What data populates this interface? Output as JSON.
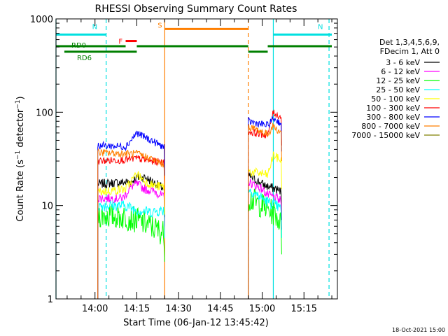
{
  "chart_data": {
    "type": "line",
    "title": "RHESSI Observing Summary Count Rates",
    "xlabel": "Start Time (06-Jan-12 13:45:42)",
    "ylabel": "Count Rate (s⁻¹ detector⁻¹)",
    "y_scale": "log",
    "ylim": [
      1,
      1000
    ],
    "xlim": [
      "13:46",
      "15:27"
    ],
    "x_ticks": [
      "14:00",
      "14:15",
      "14:30",
      "14:45",
      "15:00",
      "15:15"
    ],
    "y_ticks": [
      "1",
      "10",
      "100",
      "1000"
    ],
    "grid": false,
    "legend_position": "right",
    "legend_header": [
      "Det 1,3,4,5,6,9,",
      "FDecim 1, Att 0"
    ],
    "footer_date": "18-Oct-2021 15:00",
    "colors": {
      "axis": "#000000",
      "eclipse": "#00e0e0",
      "saa": "#ff7f00",
      "flare": "#ff0000",
      "decimation": "#007f00"
    },
    "markers": [
      {
        "label": "N",
        "color": "#00e0e0",
        "from": "13:46",
        "to": "14:04",
        "level": 680
      },
      {
        "label": "N",
        "color": "#00e0e0",
        "from": "15:04",
        "to": "15:25",
        "level": 680
      },
      {
        "label": "F",
        "color": "#ff0000",
        "from": "14:11",
        "to": "14:15",
        "level": 580
      },
      {
        "label": "S",
        "color": "#ff7f00",
        "from": "14:25",
        "to": "14:55",
        "level": 780
      },
      {
        "label": "RD0",
        "color": "#007f00",
        "from": "13:46",
        "to": "14:11",
        "level": 510
      },
      {
        "label": "RD6",
        "color": "#007f00",
        "from": "13:49",
        "to": "14:15",
        "level": 445
      },
      {
        "label": "",
        "color": "#007f00",
        "from": "14:15",
        "to": "14:55",
        "level": 510
      },
      {
        "label": "",
        "color": "#007f00",
        "from": "14:55",
        "to": "15:02",
        "level": 445
      },
      {
        "label": "",
        "color": "#007f00",
        "from": "15:02",
        "to": "15:25",
        "level": 510
      }
    ],
    "vlines": [
      {
        "time": "13:46",
        "color": "#00e0e0",
        "style": "solid"
      },
      {
        "time": "14:04",
        "color": "#00e0e0",
        "style": "dashed"
      },
      {
        "time": "14:25",
        "color": "#ff7f00",
        "style": "solid"
      },
      {
        "time": "14:55",
        "color": "#ff7f00",
        "style": "dashed"
      },
      {
        "time": "15:04",
        "color": "#00e0e0",
        "style": "solid"
      },
      {
        "time": "15:24",
        "color": "#00e0e0",
        "style": "dashed"
      }
    ],
    "series": [
      {
        "name": "3 - 6 keV",
        "color": "#000000",
        "jitter": 0.05,
        "segments": [
          {
            "x": [
              "13:61",
              "14:13",
              "14:15",
              "14:18",
              "14:22",
              "14:25"
            ],
            "y": [
              17,
              18,
              20,
              20,
              17,
              15
            ]
          },
          {
            "x": [
              "14:55",
              "15:00",
              "15:02",
              "15:05",
              "15:07"
            ],
            "y": [
              21,
              17,
              16,
              15,
              14
            ]
          }
        ]
      },
      {
        "name": "6 - 12 keV",
        "color": "#ff00ff",
        "jitter": 0.05,
        "segments": [
          {
            "x": [
              "13:61",
              "14:10",
              "14:13",
              "14:15",
              "14:18",
              "14:22",
              "14:25"
            ],
            "y": [
              12,
              12,
              16,
              17,
              15,
              14,
              12
            ]
          },
          {
            "x": [
              "14:55",
              "15:00",
              "15:02",
              "15:05",
              "15:07"
            ],
            "y": [
              18,
              15,
              13,
              12,
              11
            ]
          }
        ]
      },
      {
        "name": "12 - 25 keV",
        "color": "#00ff00",
        "jitter": 0.14,
        "segments": [
          {
            "x": [
              "13:61",
              "14:11",
              "14:15",
              "14:20",
              "14:25"
            ],
            "y": [
              8,
              7.5,
              7,
              6,
              5
            ]
          },
          {
            "x": [
              "14:55",
              "15:00",
              "15:02",
              "15:05",
              "15:07"
            ],
            "y": [
              12,
              10,
              9,
              8,
              6
            ]
          }
        ]
      },
      {
        "name": "25 - 50 keV",
        "color": "#00ffff",
        "jitter": 0.06,
        "segments": [
          {
            "x": [
              "13:61",
              "14:11",
              "14:15",
              "14:20",
              "14:25"
            ],
            "y": [
              10,
              10,
              9,
              8.5,
              9
            ]
          },
          {
            "x": [
              "14:55",
              "15:00",
              "15:02",
              "15:05",
              "15:07"
            ],
            "y": [
              15,
              12,
              11,
              10,
              9
            ]
          }
        ]
      },
      {
        "name": "50 - 100 keV",
        "color": "#ffff00",
        "jitter": 0.05,
        "segments": [
          {
            "x": [
              "13:61",
              "14:11",
              "14:15",
              "14:18",
              "14:22",
              "14:25"
            ],
            "y": [
              14,
              15,
              22,
              18,
              16,
              16
            ]
          },
          {
            "x": [
              "14:55",
              "15:00",
              "15:02",
              "15:04",
              "15:05",
              "15:07"
            ],
            "y": [
              23,
              22,
              21,
              35,
              33,
              30
            ]
          }
        ]
      },
      {
        "name": "100 - 300 keV",
        "color": "#ff0000",
        "jitter": 0.04,
        "segments": [
          {
            "x": [
              "13:61",
              "14:11",
              "14:15",
              "14:20",
              "14:25"
            ],
            "y": [
              30,
              31,
              32,
              30,
              29
            ]
          },
          {
            "x": [
              "14:55",
              "15:00",
              "15:02",
              "15:04",
              "15:05",
              "15:07"
            ],
            "y": [
              62,
              58,
              57,
              100,
              95,
              88
            ]
          }
        ]
      },
      {
        "name": "300 - 800 keV",
        "color": "#0000ff",
        "jitter": 0.04,
        "segments": [
          {
            "x": [
              "13:61",
              "14:11",
              "14:15",
              "14:20",
              "14:25"
            ],
            "y": [
              44,
              43,
              60,
              50,
              42
            ]
          },
          {
            "x": [
              "14:55",
              "15:00",
              "15:02",
              "15:04",
              "15:05",
              "15:07"
            ],
            "y": [
              80,
              74,
              72,
              86,
              82,
              76
            ]
          }
        ]
      },
      {
        "name": "800 - 7000 keV",
        "color": "#ff7f00",
        "jitter": 0.04,
        "segments": [
          {
            "x": [
              "13:61",
              "14:11",
              "14:15",
              "14:20",
              "14:25"
            ],
            "y": [
              37,
              36,
              36,
              32,
              27
            ]
          },
          {
            "x": [
              "14:55",
              "15:00",
              "15:02",
              "15:04",
              "15:05",
              "15:07"
            ],
            "y": [
              70,
              62,
              58,
              72,
              66,
              60
            ]
          }
        ]
      },
      {
        "name": "7000 - 15000 keV",
        "color": "#7f7f00",
        "jitter": 0.03,
        "segments": []
      }
    ]
  }
}
